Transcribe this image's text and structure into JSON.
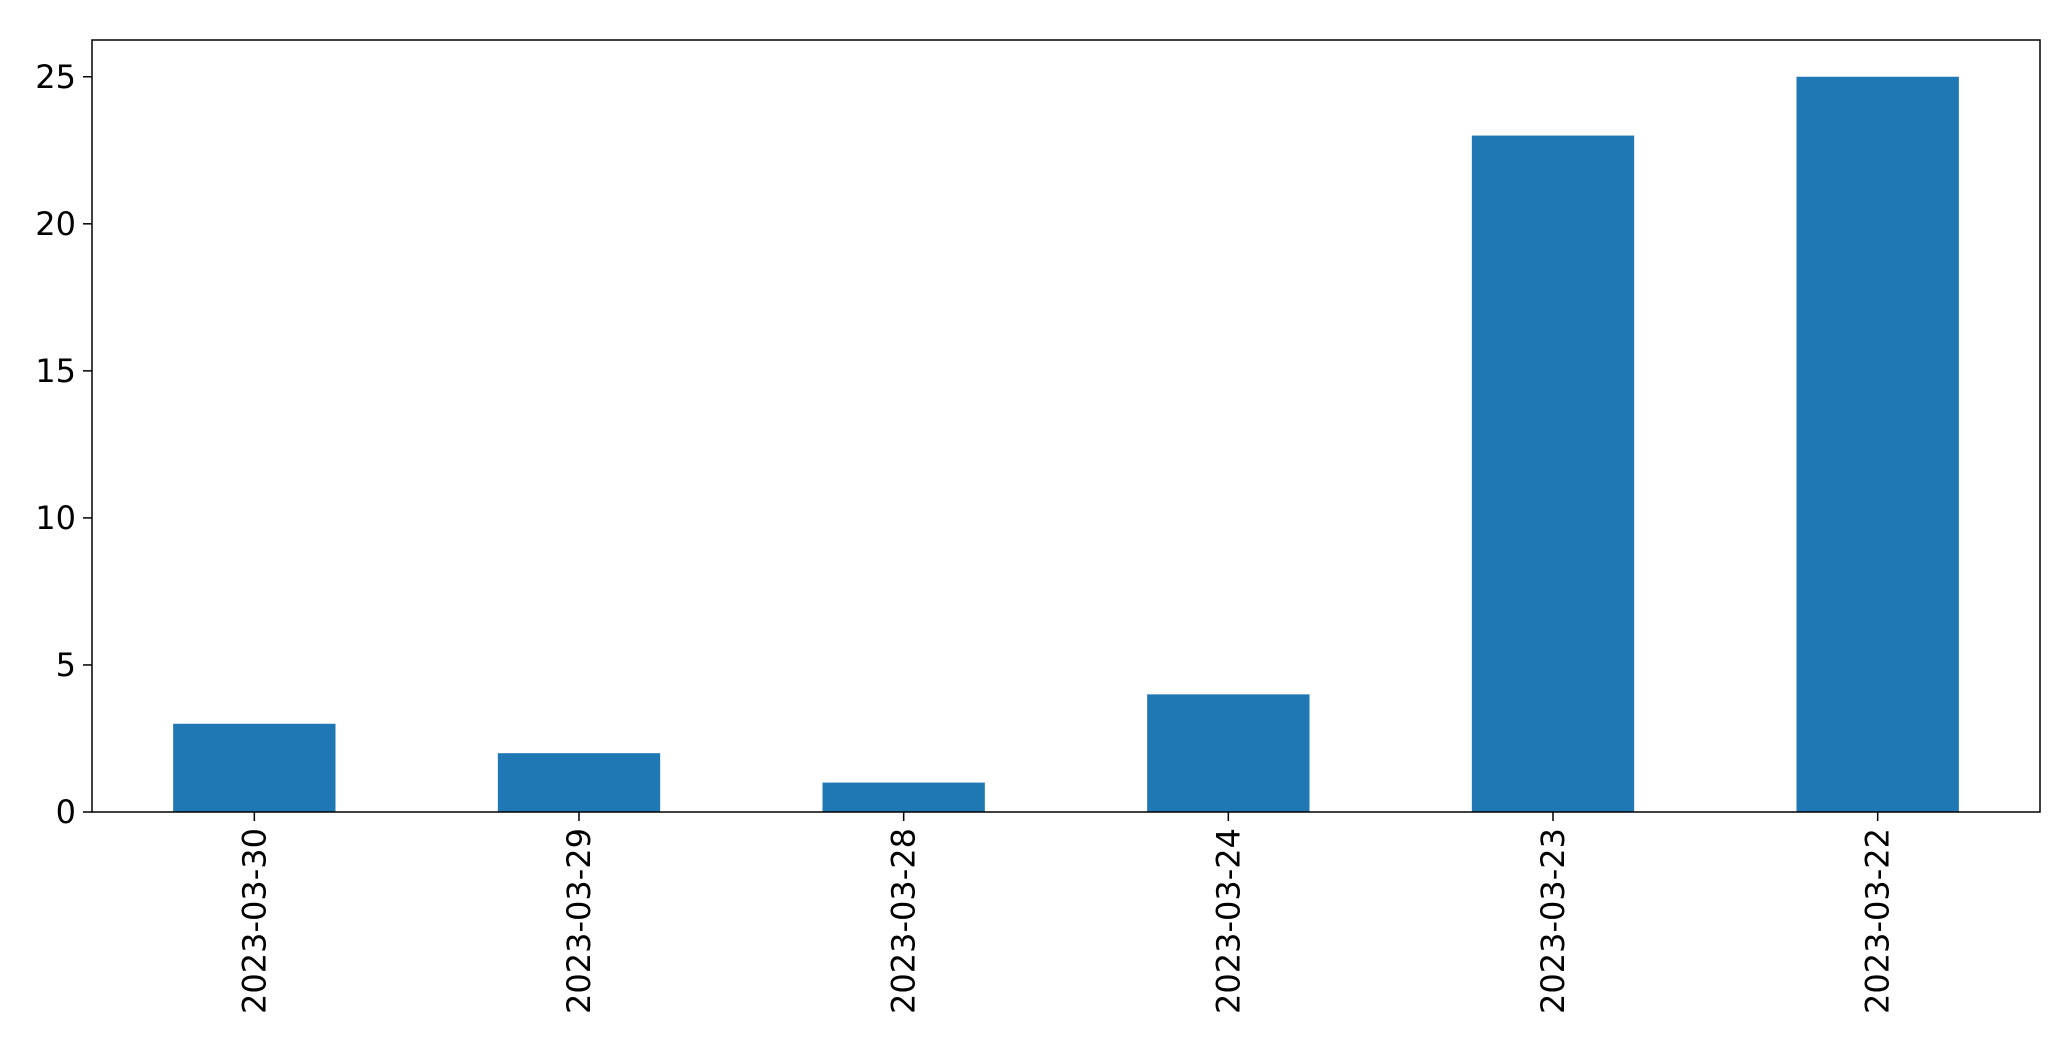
{
  "chart_data": {
    "type": "bar",
    "title": "",
    "xlabel": "",
    "ylabel": "",
    "categories": [
      "2023-03-30",
      "2023-03-29",
      "2023-03-28",
      "2023-03-24",
      "2023-03-23",
      "2023-03-22"
    ],
    "values": [
      3,
      2,
      1,
      4,
      23,
      25
    ],
    "ylim": [
      0,
      26.25
    ],
    "yticks": [
      0,
      5,
      10,
      15,
      20,
      25
    ],
    "bar_color": "#1f77b4",
    "grid": false,
    "legend": "none",
    "x_tick_rotation": "vertical"
  }
}
